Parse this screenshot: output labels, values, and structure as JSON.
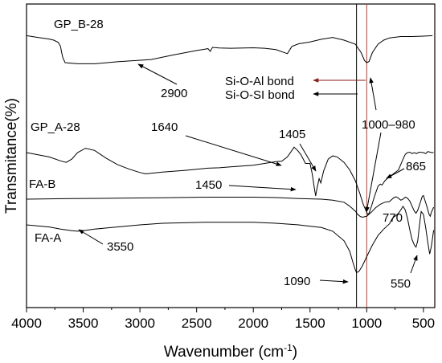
{
  "chart_data": {
    "type": "line",
    "xlabel": "Wavenumber (cm",
    "xlabel_sup": "-1",
    "xlabel_close": ")",
    "ylabel": "Transmitance(%)",
    "xlim": [
      4000,
      400
    ],
    "x_reversed": true,
    "x_ticks": [
      "4000",
      "3500",
      "3000",
      "2500",
      "2000",
      "1500",
      "1000",
      "500"
    ],
    "grid": false,
    "legend": "none",
    "series": [
      {
        "name": "GP_B-28",
        "color": "#000000",
        "points": [
          [
            4000,
            -0.2
          ],
          [
            3900,
            -0.12
          ],
          [
            3800,
            -0.05
          ],
          [
            3760,
            0.0
          ],
          [
            3720,
            0.1
          ],
          [
            3700,
            0.28
          ],
          [
            3690,
            0.55
          ],
          [
            3680,
            0.78
          ],
          [
            3660,
            1.0
          ],
          [
            3550,
            1.05
          ],
          [
            3400,
            1.05
          ],
          [
            3200,
            0.96
          ],
          [
            2900,
            0.86
          ],
          [
            2700,
            0.65
          ],
          [
            2500,
            0.46
          ],
          [
            2400,
            0.38
          ],
          [
            2380,
            0.5
          ],
          [
            2360,
            0.32
          ],
          [
            2300,
            0.35
          ],
          [
            2200,
            0.36
          ],
          [
            2000,
            0.34
          ],
          [
            1900,
            0.36
          ],
          [
            1800,
            0.42
          ],
          [
            1700,
            0.6
          ],
          [
            1660,
            0.28
          ],
          [
            1600,
            0.16
          ],
          [
            1500,
            0.08
          ],
          [
            1400,
            -0.04
          ],
          [
            1300,
            -0.12
          ],
          [
            1200,
            0.0
          ],
          [
            1100,
            0.18
          ],
          [
            1050,
            0.55
          ],
          [
            1020,
            0.9
          ],
          [
            1000,
            1.0
          ],
          [
            980,
            0.95
          ],
          [
            950,
            0.55
          ],
          [
            900,
            0.18
          ],
          [
            850,
            0.0
          ],
          [
            800,
            -0.1
          ],
          [
            700,
            -0.16
          ],
          [
            600,
            -0.16
          ],
          [
            500,
            -0.18
          ],
          [
            420,
            -0.2
          ]
        ]
      },
      {
        "name": "GP_A-28",
        "color": "#000000",
        "points": [
          [
            4000,
            0.0
          ],
          [
            3800,
            0.2
          ],
          [
            3700,
            0.38
          ],
          [
            3650,
            0.45
          ],
          [
            3600,
            0.3
          ],
          [
            3550,
            0.0
          ],
          [
            3480,
            -0.2
          ],
          [
            3400,
            -0.1
          ],
          [
            3300,
            0.25
          ],
          [
            3200,
            0.55
          ],
          [
            3100,
            0.75
          ],
          [
            3000,
            0.92
          ],
          [
            2950,
            0.98
          ],
          [
            2900,
            0.95
          ],
          [
            2800,
            0.9
          ],
          [
            2600,
            0.82
          ],
          [
            2400,
            0.72
          ],
          [
            2300,
            0.7
          ],
          [
            2200,
            0.66
          ],
          [
            2000,
            0.58
          ],
          [
            1900,
            0.5
          ],
          [
            1800,
            0.42
          ],
          [
            1750,
            0.4
          ],
          [
            1700,
            0.2
          ],
          [
            1660,
            -0.1
          ],
          [
            1640,
            -0.25
          ],
          [
            1610,
            -0.1
          ],
          [
            1580,
            0.1
          ],
          [
            1540,
            0.5
          ],
          [
            1500,
            0.5
          ],
          [
            1480,
            1.0
          ],
          [
            1460,
            1.7
          ],
          [
            1450,
            2.0
          ],
          [
            1440,
            1.7
          ],
          [
            1420,
            1.2
          ],
          [
            1405,
            1.4
          ],
          [
            1380,
            0.85
          ],
          [
            1340,
            0.3
          ],
          [
            1300,
            0.15
          ],
          [
            1260,
            0.2
          ],
          [
            1200,
            0.45
          ],
          [
            1150,
            0.8
          ],
          [
            1100,
            1.3
          ],
          [
            1060,
            1.9
          ],
          [
            1030,
            2.4
          ],
          [
            1000,
            2.75
          ],
          [
            990,
            2.85
          ],
          [
            980,
            2.8
          ],
          [
            960,
            2.5
          ],
          [
            930,
            2.0
          ],
          [
            900,
            1.55
          ],
          [
            880,
            1.45
          ],
          [
            865,
            1.5
          ],
          [
            840,
            1.3
          ],
          [
            800,
            1.1
          ],
          [
            770,
            1.0
          ],
          [
            720,
            0.8
          ],
          [
            700,
            0.55
          ],
          [
            680,
            0.3
          ],
          [
            660,
            0.08
          ],
          [
            640,
            0.0
          ],
          [
            620,
            -0.02
          ],
          [
            600,
            0.05
          ],
          [
            580,
            0.0
          ],
          [
            560,
            0.05
          ],
          [
            540,
            -0.02
          ],
          [
            500,
            0.0
          ],
          [
            480,
            0.05
          ],
          [
            460,
            -0.05
          ],
          [
            430,
            0.0
          ],
          [
            410,
            0.0
          ]
        ]
      },
      {
        "name": "FA-B",
        "color": "#000000",
        "points": [
          [
            4000,
            0.0
          ],
          [
            3600,
            -0.03
          ],
          [
            3200,
            -0.05
          ],
          [
            2800,
            -0.07
          ],
          [
            2400,
            -0.1
          ],
          [
            2000,
            -0.1
          ],
          [
            1800,
            -0.08
          ],
          [
            1600,
            -0.03
          ],
          [
            1400,
            0.0
          ],
          [
            1300,
            0.05
          ],
          [
            1200,
            0.15
          ],
          [
            1150,
            0.35
          ],
          [
            1100,
            0.6
          ],
          [
            1080,
            0.75
          ],
          [
            1060,
            0.85
          ],
          [
            1040,
            0.9
          ],
          [
            1000,
            0.85
          ],
          [
            960,
            0.65
          ],
          [
            920,
            0.42
          ],
          [
            880,
            0.25
          ],
          [
            840,
            0.15
          ],
          [
            800,
            0.12
          ],
          [
            780,
            0.02
          ],
          [
            760,
            -0.08
          ],
          [
            740,
            -0.12
          ],
          [
            720,
            -0.05
          ],
          [
            700,
            0.05
          ],
          [
            680,
            0.0
          ],
          [
            660,
            -0.1
          ],
          [
            640,
            -0.05
          ],
          [
            620,
            0.1
          ],
          [
            600,
            0.35
          ],
          [
            580,
            0.6
          ],
          [
            565,
            0.7
          ],
          [
            550,
            0.55
          ],
          [
            530,
            0.2
          ],
          [
            510,
            -0.15
          ],
          [
            500,
            -0.18
          ],
          [
            490,
            0.0
          ],
          [
            470,
            0.35
          ],
          [
            450,
            0.75
          ],
          [
            440,
            0.85
          ],
          [
            430,
            0.65
          ],
          [
            410,
            0.4
          ]
        ]
      },
      {
        "name": "FA-A",
        "color": "#000000",
        "points": [
          [
            4000,
            0.0
          ],
          [
            3800,
            0.04
          ],
          [
            3700,
            0.08
          ],
          [
            3600,
            0.11
          ],
          [
            3550,
            0.12
          ],
          [
            3500,
            0.11
          ],
          [
            3400,
            0.08
          ],
          [
            3200,
            0.04
          ],
          [
            3000,
            0.0
          ],
          [
            2800,
            -0.03
          ],
          [
            2400,
            -0.05
          ],
          [
            2000,
            -0.05
          ],
          [
            1800,
            -0.03
          ],
          [
            1600,
            0.0
          ],
          [
            1400,
            0.05
          ],
          [
            1300,
            0.12
          ],
          [
            1200,
            0.3
          ],
          [
            1150,
            0.5
          ],
          [
            1120,
            0.72
          ],
          [
            1100,
            0.85
          ],
          [
            1090,
            0.9
          ],
          [
            1070,
            0.88
          ],
          [
            1040,
            0.78
          ],
          [
            1000,
            0.6
          ],
          [
            950,
            0.38
          ],
          [
            900,
            0.2
          ],
          [
            850,
            0.08
          ],
          [
            800,
            -0.02
          ],
          [
            780,
            -0.1
          ],
          [
            760,
            -0.15
          ],
          [
            740,
            -0.18
          ],
          [
            720,
            -0.22
          ],
          [
            700,
            -0.28
          ],
          [
            680,
            -0.35
          ],
          [
            660,
            -0.28
          ],
          [
            640,
            -0.12
          ],
          [
            620,
            0.1
          ],
          [
            600,
            0.28
          ],
          [
            580,
            0.38
          ],
          [
            565,
            0.42
          ],
          [
            550,
            0.3
          ],
          [
            535,
            0.0
          ],
          [
            520,
            -0.25
          ],
          [
            500,
            -0.2
          ],
          [
            480,
            0.05
          ],
          [
            460,
            0.35
          ],
          [
            445,
            0.55
          ],
          [
            430,
            0.4
          ],
          [
            410,
            0.1
          ]
        ]
      }
    ],
    "reference_lines": [
      {
        "x": 1090,
        "color": "#000000"
      },
      {
        "x": 1000,
        "color": "#c0392b"
      }
    ],
    "annotations": [
      {
        "text": "2900",
        "x": 2900
      },
      {
        "text": "Si-O-Al bond",
        "arrow_color": "#8b1a1a"
      },
      {
        "text": "Si-O-SI bond",
        "arrow_color": "#000000"
      },
      {
        "text": "1000–980",
        "x": 1000
      },
      {
        "text": "1640",
        "x": 1640
      },
      {
        "text": "1405",
        "x": 1405
      },
      {
        "text": "1450",
        "x": 1450
      },
      {
        "text": "865",
        "x": 865
      },
      {
        "text": "770",
        "x": 770
      },
      {
        "text": "3550",
        "x": 3550
      },
      {
        "text": "1090",
        "x": 1090
      },
      {
        "text": "550",
        "x": 550
      }
    ]
  }
}
